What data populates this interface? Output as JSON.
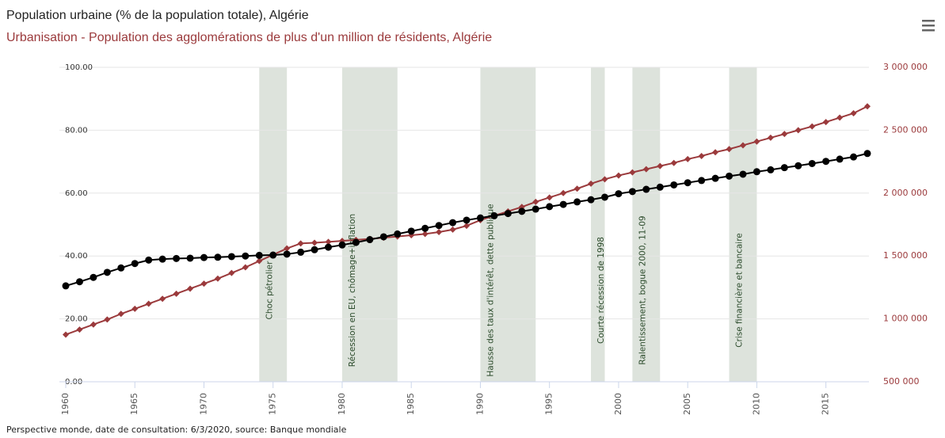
{
  "chart_data": {
    "type": "line",
    "title": "Population urbaine (% de la population totale), Algérie",
    "subtitle": "Urbanisation - Population des agglomérations de plus d'un million de résidents, Algérie",
    "source": "Perspective monde, date de consultation: 6/3/2020, source: Banque mondiale",
    "x": [
      1960,
      1961,
      1962,
      1963,
      1964,
      1965,
      1966,
      1967,
      1968,
      1969,
      1970,
      1971,
      1972,
      1973,
      1974,
      1975,
      1976,
      1977,
      1978,
      1979,
      1980,
      1981,
      1982,
      1983,
      1984,
      1985,
      1986,
      1987,
      1988,
      1989,
      1990,
      1991,
      1992,
      1993,
      1994,
      1995,
      1996,
      1997,
      1998,
      1999,
      2000,
      2001,
      2002,
      2003,
      2004,
      2005,
      2006,
      2007,
      2008,
      2009,
      2010,
      2011,
      2012,
      2013,
      2014,
      2015,
      2016,
      2017,
      2018
    ],
    "series": [
      {
        "name": "Population urbaine (% de la population totale), Algérie",
        "color": "#000000",
        "marker": "circle",
        "values": [
          30.5,
          31.8,
          33.2,
          34.8,
          36.2,
          37.6,
          38.7,
          39.0,
          39.2,
          39.3,
          39.5,
          39.6,
          39.8,
          40.0,
          40.2,
          40.3,
          40.6,
          41.2,
          42.0,
          42.8,
          43.5,
          44.3,
          45.2,
          46.1,
          47.0,
          47.9,
          48.8,
          49.7,
          50.6,
          51.4,
          52.1,
          52.8,
          53.5,
          54.2,
          54.9,
          55.7,
          56.4,
          57.2,
          57.9,
          58.7,
          59.8,
          60.5,
          61.2,
          61.9,
          62.6,
          63.3,
          64.0,
          64.7,
          65.4,
          66.0,
          66.8,
          67.4,
          68.1,
          68.7,
          69.4,
          70.1,
          70.8,
          71.5,
          72.6
        ]
      },
      {
        "name": "Urbanisation - Population des agglomérations de plus d'un million de résidents, Algérie",
        "color": "#9b3a3c",
        "marker": "diamond",
        "axis": "y2",
        "values": [
          875000,
          915000,
          955000,
          995000,
          1040000,
          1080000,
          1120000,
          1160000,
          1200000,
          1240000,
          1280000,
          1320000,
          1365000,
          1410000,
          1460000,
          1510000,
          1560000,
          1600000,
          1605000,
          1612000,
          1620000,
          1628000,
          1636000,
          1645000,
          1655000,
          1665000,
          1675000,
          1690000,
          1710000,
          1740000,
          1785000,
          1820000,
          1855000,
          1890000,
          1930000,
          1965000,
          2000000,
          2035000,
          2075000,
          2110000,
          2140000,
          2165000,
          2190000,
          2215000,
          2240000,
          2270000,
          2295000,
          2325000,
          2350000,
          2380000,
          2410000,
          2440000,
          2470000,
          2500000,
          2530000,
          2565000,
          2600000,
          2635000,
          2690000
        ]
      }
    ],
    "bands": [
      {
        "from": 1974,
        "to": 1976,
        "label": "Choc pétrolier"
      },
      {
        "from": 1980,
        "to": 1984,
        "label": "Récession en EU, chômage+inflation"
      },
      {
        "from": 1990,
        "to": 1994,
        "label": "Hausse des taux d'intérêt, dette publique"
      },
      {
        "from": 1998,
        "to": 1999,
        "label": "Courte récession de 1998"
      },
      {
        "from": 2001,
        "to": 2003,
        "label": "Ralentissement, bogue 2000, 11-09"
      },
      {
        "from": 2008,
        "to": 2010,
        "label": "Crise financière et bancaire"
      }
    ],
    "xlim": [
      1960,
      2018
    ],
    "xticks": [
      1960,
      1965,
      1970,
      1975,
      1980,
      1985,
      1990,
      1995,
      2000,
      2005,
      2010,
      2015
    ],
    "ylim": [
      0,
      100
    ],
    "yticks": [
      {
        "value": 0,
        "label": "0.00"
      },
      {
        "value": 20,
        "label": "20.00"
      },
      {
        "value": 40,
        "label": "40.00"
      },
      {
        "value": 60,
        "label": "60.00"
      },
      {
        "value": 80,
        "label": "80.00"
      },
      {
        "value": 100,
        "label": "100.00"
      }
    ],
    "y2lim": [
      500000,
      3000000
    ],
    "y2ticks": [
      {
        "value": 500000,
        "label": "500 000"
      },
      {
        "value": 1000000,
        "label": "1 000 000"
      },
      {
        "value": 1500000,
        "label": "1 500 000"
      },
      {
        "value": 2000000,
        "label": "2 000 000"
      },
      {
        "value": 2500000,
        "label": "2 500 000"
      },
      {
        "value": 3000000,
        "label": "3 000 000"
      }
    ],
    "grid": true
  }
}
